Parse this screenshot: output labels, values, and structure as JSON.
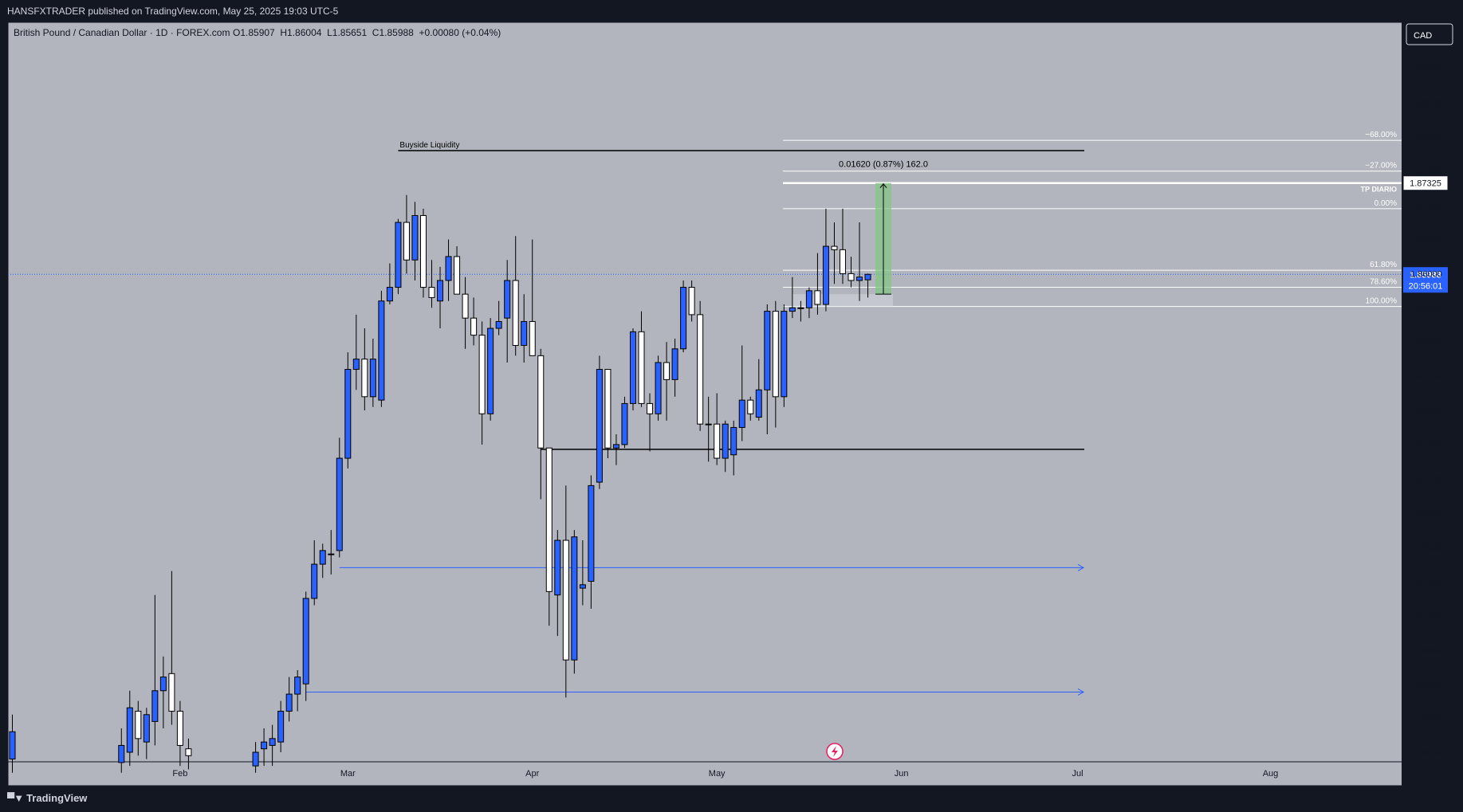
{
  "header": {
    "published_text": "HANSFXTRADER published on TradingView.com, May 25, 2025 19:03 UTC-5"
  },
  "legend": {
    "symbol": "British Pound / Canadian Dollar · 1D · FOREX.com",
    "ohlc": "O1.85907  H1.86004  L1.85651  C1.85988  +0.00080 (+0.04%)"
  },
  "currency_button": "CAD",
  "footer": {
    "brand": "TradingView"
  },
  "colors": {
    "background": "#b2b5be",
    "up_candle": "#2962ff",
    "down_candle": "#ffffff",
    "outline": "#000000",
    "price_label": "#2962ff",
    "ray": "#2962ff",
    "target_box": "#81c784"
  },
  "price_label": {
    "price": "1.85988",
    "countdown": "20:56:01"
  },
  "target_label": "1.87325",
  "annotations": {
    "buyside": "Buyside Liquidity",
    "measure": "0.01620 (0.87%) 162.0",
    "tp": "TP DIARIO"
  },
  "fib_levels": [
    {
      "label": "−68.00%",
      "price": 1.8795
    },
    {
      "label": "−27.00%",
      "price": 1.875
    },
    {
      "label": "0.00%",
      "price": 1.8695
    },
    {
      "label": "61.80%",
      "price": 1.8605
    },
    {
      "label": "78.60%",
      "price": 1.858
    },
    {
      "label": "100.00%",
      "price": 1.8552
    }
  ],
  "chart_data": {
    "type": "candlestick",
    "symbol": "GBPCAD",
    "timeframe": "1D",
    "ylim": [
      1.7875,
      1.893
    ],
    "y_ticks": [
      "1.89000",
      "1.88500",
      "1.88000",
      "1.87500",
      "1.87000",
      "1.86500",
      "1.86000",
      "1.85500",
      "1.85000",
      "1.84500",
      "1.84000",
      "1.83500",
      "1.83000",
      "1.82500",
      "1.82000",
      "1.81500",
      "1.81000",
      "1.80500",
      "1.80000",
      "1.79500",
      "1.79000"
    ],
    "x_ticks": [
      {
        "label": "Feb",
        "index": 20
      },
      {
        "label": "Mar",
        "index": 40
      },
      {
        "label": "Apr",
        "index": 62
      },
      {
        "label": "May",
        "index": 84
      },
      {
        "label": "Jun",
        "index": 106
      },
      {
        "label": "Jul",
        "index": 127
      },
      {
        "label": "Aug",
        "index": 150
      }
    ],
    "candles": [
      {
        "i": 0,
        "o": 1.789,
        "h": 1.7955,
        "l": 1.787,
        "c": 1.793
      },
      {
        "i": 13,
        "o": 1.7885,
        "h": 1.7935,
        "l": 1.787,
        "c": 1.791
      },
      {
        "i": 14,
        "o": 1.79,
        "h": 1.799,
        "l": 1.788,
        "c": 1.7965
      },
      {
        "i": 15,
        "o": 1.796,
        "h": 1.7975,
        "l": 1.7895,
        "c": 1.792
      },
      {
        "i": 16,
        "o": 1.7915,
        "h": 1.7965,
        "l": 1.789,
        "c": 1.7955
      },
      {
        "i": 17,
        "o": 1.7945,
        "h": 1.813,
        "l": 1.791,
        "c": 1.799
      },
      {
        "i": 18,
        "o": 1.799,
        "h": 1.804,
        "l": 1.7935,
        "c": 1.801
      },
      {
        "i": 19,
        "o": 1.8015,
        "h": 1.8165,
        "l": 1.794,
        "c": 1.796
      },
      {
        "i": 20,
        "o": 1.796,
        "h": 1.7975,
        "l": 1.788,
        "c": 1.791
      },
      {
        "i": 21,
        "o": 1.7905,
        "h": 1.792,
        "l": 1.7875,
        "c": 1.7895
      },
      {
        "i": 29,
        "o": 1.788,
        "h": 1.7915,
        "l": 1.787,
        "c": 1.79
      },
      {
        "i": 30,
        "o": 1.7905,
        "h": 1.7935,
        "l": 1.788,
        "c": 1.7915
      },
      {
        "i": 31,
        "o": 1.791,
        "h": 1.794,
        "l": 1.788,
        "c": 1.792
      },
      {
        "i": 32,
        "o": 1.7915,
        "h": 1.7975,
        "l": 1.79,
        "c": 1.796
      },
      {
        "i": 33,
        "o": 1.796,
        "h": 1.801,
        "l": 1.7945,
        "c": 1.7985
      },
      {
        "i": 34,
        "o": 1.7985,
        "h": 1.802,
        "l": 1.796,
        "c": 1.801
      },
      {
        "i": 35,
        "o": 1.8,
        "h": 1.8135,
        "l": 1.7975,
        "c": 1.8125
      },
      {
        "i": 36,
        "o": 1.8125,
        "h": 1.821,
        "l": 1.8115,
        "c": 1.8175
      },
      {
        "i": 37,
        "o": 1.8175,
        "h": 1.8205,
        "l": 1.8155,
        "c": 1.8195
      },
      {
        "i": 38,
        "o": 1.819,
        "h": 1.8225,
        "l": 1.816,
        "c": 1.819
      },
      {
        "i": 39,
        "o": 1.8195,
        "h": 1.836,
        "l": 1.8185,
        "c": 1.833
      },
      {
        "i": 40,
        "o": 1.833,
        "h": 1.8485,
        "l": 1.8315,
        "c": 1.846
      },
      {
        "i": 41,
        "o": 1.846,
        "h": 1.854,
        "l": 1.843,
        "c": 1.8475
      },
      {
        "i": 42,
        "o": 1.8475,
        "h": 1.852,
        "l": 1.84,
        "c": 1.842
      },
      {
        "i": 43,
        "o": 1.842,
        "h": 1.8505,
        "l": 1.8405,
        "c": 1.8475
      },
      {
        "i": 44,
        "o": 1.8415,
        "h": 1.8575,
        "l": 1.8405,
        "c": 1.856
      },
      {
        "i": 45,
        "o": 1.856,
        "h": 1.8615,
        "l": 1.8555,
        "c": 1.858
      },
      {
        "i": 46,
        "o": 1.858,
        "h": 1.868,
        "l": 1.857,
        "c": 1.8675
      },
      {
        "i": 47,
        "o": 1.8675,
        "h": 1.8715,
        "l": 1.86,
        "c": 1.862
      },
      {
        "i": 48,
        "o": 1.862,
        "h": 1.8705,
        "l": 1.859,
        "c": 1.8685
      },
      {
        "i": 49,
        "o": 1.8685,
        "h": 1.8695,
        "l": 1.8565,
        "c": 1.858
      },
      {
        "i": 50,
        "o": 1.858,
        "h": 1.862,
        "l": 1.855,
        "c": 1.8565
      },
      {
        "i": 51,
        "o": 1.856,
        "h": 1.861,
        "l": 1.852,
        "c": 1.859
      },
      {
        "i": 52,
        "o": 1.859,
        "h": 1.865,
        "l": 1.856,
        "c": 1.8625
      },
      {
        "i": 53,
        "o": 1.8625,
        "h": 1.864,
        "l": 1.857,
        "c": 1.857
      },
      {
        "i": 54,
        "o": 1.857,
        "h": 1.8595,
        "l": 1.849,
        "c": 1.8535
      },
      {
        "i": 55,
        "o": 1.8535,
        "h": 1.8565,
        "l": 1.8495,
        "c": 1.851
      },
      {
        "i": 56,
        "o": 1.851,
        "h": 1.853,
        "l": 1.835,
        "c": 1.8395
      },
      {
        "i": 57,
        "o": 1.8395,
        "h": 1.8535,
        "l": 1.8385,
        "c": 1.852
      },
      {
        "i": 58,
        "o": 1.852,
        "h": 1.856,
        "l": 1.851,
        "c": 1.853
      },
      {
        "i": 59,
        "o": 1.8535,
        "h": 1.862,
        "l": 1.847,
        "c": 1.859
      },
      {
        "i": 60,
        "o": 1.859,
        "h": 1.8655,
        "l": 1.848,
        "c": 1.8495
      },
      {
        "i": 61,
        "o": 1.8495,
        "h": 1.857,
        "l": 1.847,
        "c": 1.853
      },
      {
        "i": 62,
        "o": 1.853,
        "h": 1.865,
        "l": 1.848,
        "c": 1.848
      },
      {
        "i": 63,
        "o": 1.848,
        "h": 1.849,
        "l": 1.827,
        "c": 1.8345
      },
      {
        "i": 64,
        "o": 1.8345,
        "h": 1.8345,
        "l": 1.8085,
        "c": 1.8135
      },
      {
        "i": 65,
        "o": 1.813,
        "h": 1.8225,
        "l": 1.807,
        "c": 1.821
      },
      {
        "i": 66,
        "o": 1.821,
        "h": 1.829,
        "l": 1.798,
        "c": 1.8035
      },
      {
        "i": 67,
        "o": 1.8035,
        "h": 1.8225,
        "l": 1.8015,
        "c": 1.8215
      },
      {
        "i": 68,
        "o": 1.814,
        "h": 1.821,
        "l": 1.8115,
        "c": 1.8145
      },
      {
        "i": 69,
        "o": 1.815,
        "h": 1.8305,
        "l": 1.811,
        "c": 1.829
      },
      {
        "i": 70,
        "o": 1.8295,
        "h": 1.848,
        "l": 1.8285,
        "c": 1.846
      },
      {
        "i": 71,
        "o": 1.846,
        "h": 1.846,
        "l": 1.833,
        "c": 1.8345
      },
      {
        "i": 72,
        "o": 1.8345,
        "h": 1.8365,
        "l": 1.832,
        "c": 1.835
      },
      {
        "i": 73,
        "o": 1.835,
        "h": 1.842,
        "l": 1.8345,
        "c": 1.841
      },
      {
        "i": 74,
        "o": 1.841,
        "h": 1.852,
        "l": 1.84,
        "c": 1.8515
      },
      {
        "i": 75,
        "o": 1.8515,
        "h": 1.8545,
        "l": 1.8405,
        "c": 1.841
      },
      {
        "i": 76,
        "o": 1.841,
        "h": 1.8425,
        "l": 1.834,
        "c": 1.8395
      },
      {
        "i": 77,
        "o": 1.8395,
        "h": 1.848,
        "l": 1.8385,
        "c": 1.847
      },
      {
        "i": 78,
        "o": 1.847,
        "h": 1.85,
        "l": 1.8385,
        "c": 1.8445
      },
      {
        "i": 79,
        "o": 1.8445,
        "h": 1.8505,
        "l": 1.842,
        "c": 1.849
      },
      {
        "i": 80,
        "o": 1.849,
        "h": 1.859,
        "l": 1.8485,
        "c": 1.858
      },
      {
        "i": 81,
        "o": 1.858,
        "h": 1.859,
        "l": 1.853,
        "c": 1.854
      },
      {
        "i": 82,
        "o": 1.854,
        "h": 1.856,
        "l": 1.837,
        "c": 1.838
      },
      {
        "i": 83,
        "o": 1.838,
        "h": 1.842,
        "l": 1.8325,
        "c": 1.838
      },
      {
        "i": 84,
        "o": 1.838,
        "h": 1.8425,
        "l": 1.832,
        "c": 1.833
      },
      {
        "i": 85,
        "o": 1.833,
        "h": 1.8385,
        "l": 1.831,
        "c": 1.838
      },
      {
        "i": 86,
        "o": 1.8335,
        "h": 1.8385,
        "l": 1.8305,
        "c": 1.8375
      },
      {
        "i": 87,
        "o": 1.8375,
        "h": 1.8495,
        "l": 1.8355,
        "c": 1.8415
      },
      {
        "i": 88,
        "o": 1.8415,
        "h": 1.842,
        "l": 1.8385,
        "c": 1.8395
      },
      {
        "i": 89,
        "o": 1.839,
        "h": 1.8475,
        "l": 1.8385,
        "c": 1.843
      },
      {
        "i": 90,
        "o": 1.843,
        "h": 1.8555,
        "l": 1.8365,
        "c": 1.8545
      },
      {
        "i": 91,
        "o": 1.8545,
        "h": 1.856,
        "l": 1.8375,
        "c": 1.842
      },
      {
        "i": 92,
        "o": 1.842,
        "h": 1.8555,
        "l": 1.8405,
        "c": 1.8545
      },
      {
        "i": 93,
        "o": 1.8545,
        "h": 1.8595,
        "l": 1.8535,
        "c": 1.855
      },
      {
        "i": 94,
        "o": 1.855,
        "h": 1.856,
        "l": 1.853,
        "c": 1.855
      },
      {
        "i": 95,
        "o": 1.855,
        "h": 1.858,
        "l": 1.8535,
        "c": 1.8575
      },
      {
        "i": 96,
        "o": 1.8575,
        "h": 1.863,
        "l": 1.854,
        "c": 1.8555
      },
      {
        "i": 97,
        "o": 1.8555,
        "h": 1.8695,
        "l": 1.8545,
        "c": 1.864
      },
      {
        "i": 98,
        "o": 1.864,
        "h": 1.8675,
        "l": 1.8585,
        "c": 1.8635
      },
      {
        "i": 99,
        "o": 1.8635,
        "h": 1.8695,
        "l": 1.8585,
        "c": 1.86
      },
      {
        "i": 100,
        "o": 1.86,
        "h": 1.8625,
        "l": 1.858,
        "c": 1.859
      },
      {
        "i": 101,
        "o": 1.859,
        "h": 1.8675,
        "l": 1.856,
        "c": 1.8595
      },
      {
        "i": 102,
        "o": 1.8591,
        "h": 1.86,
        "l": 1.8565,
        "c": 1.8599
      }
    ],
    "levels": {
      "buyside_liquidity": 1.878,
      "horizontal_line": 1.8343,
      "ray_upper": 1.817,
      "ray_lower": 1.7988,
      "target": 1.87325,
      "entry": 1.857
    }
  }
}
